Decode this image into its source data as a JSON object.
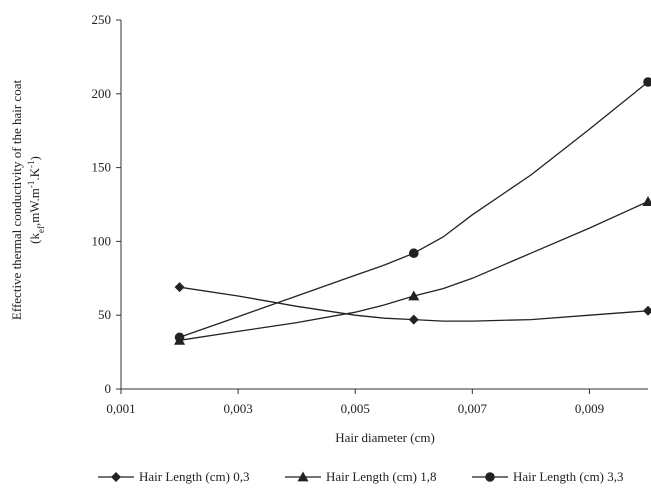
{
  "chart_data": {
    "type": "line",
    "xlabel": "Hair diameter (cm)",
    "ylabel_line1": "Effective thermal conductivity of the hair coat",
    "ylabel_line2": "(k",
    "ylabel_sub": "ef",
    "ylabel_line2_rest": ",mW.m",
    "ylabel_sup1": "-1",
    "ylabel_mid": ".K",
    "ylabel_sup2": "-1",
    "ylabel_end": ")",
    "xlim": [
      0.001,
      0.01
    ],
    "ylim": [
      0,
      250
    ],
    "x_ticks": [
      0.001,
      0.003,
      0.005,
      0.007,
      0.009
    ],
    "x_tick_labels": [
      "0,001",
      "0,003",
      "0,005",
      "0,007",
      "0,009"
    ],
    "y_ticks": [
      0,
      50,
      100,
      150,
      200,
      250
    ],
    "y_tick_labels": [
      "0",
      "50",
      "100",
      "150",
      "200",
      "250"
    ],
    "grid": false,
    "legend_position": "bottom",
    "series": [
      {
        "name": "Hair Length (cm) 0,3",
        "marker": "diamond",
        "points": [
          [
            0.002,
            69
          ],
          [
            0.006,
            47
          ],
          [
            0.01,
            53
          ]
        ],
        "curve": [
          [
            0.002,
            69
          ],
          [
            0.003,
            63
          ],
          [
            0.004,
            56
          ],
          [
            0.005,
            50
          ],
          [
            0.0055,
            48
          ],
          [
            0.006,
            47
          ],
          [
            0.0065,
            46
          ],
          [
            0.007,
            46
          ],
          [
            0.008,
            47
          ],
          [
            0.009,
            50
          ],
          [
            0.01,
            53
          ]
        ]
      },
      {
        "name": "Hair Length (cm) 1,8",
        "marker": "triangle",
        "points": [
          [
            0.002,
            33
          ],
          [
            0.006,
            63
          ],
          [
            0.01,
            127
          ]
        ],
        "curve": [
          [
            0.002,
            33
          ],
          [
            0.003,
            39
          ],
          [
            0.004,
            45
          ],
          [
            0.005,
            52
          ],
          [
            0.0055,
            57
          ],
          [
            0.006,
            63
          ],
          [
            0.0065,
            68
          ],
          [
            0.007,
            75
          ],
          [
            0.008,
            92
          ],
          [
            0.009,
            109
          ],
          [
            0.01,
            127
          ]
        ]
      },
      {
        "name": "Hair Length (cm) 3,3",
        "marker": "circle",
        "points": [
          [
            0.002,
            35
          ],
          [
            0.006,
            92
          ],
          [
            0.01,
            208
          ]
        ],
        "curve": [
          [
            0.002,
            35
          ],
          [
            0.003,
            49
          ],
          [
            0.004,
            63
          ],
          [
            0.005,
            77
          ],
          [
            0.0055,
            84
          ],
          [
            0.006,
            92
          ],
          [
            0.0065,
            103
          ],
          [
            0.007,
            118
          ],
          [
            0.008,
            145
          ],
          [
            0.009,
            176
          ],
          [
            0.01,
            208
          ]
        ]
      }
    ],
    "colors": {
      "line": "#222222",
      "axis": "#333333"
    }
  }
}
